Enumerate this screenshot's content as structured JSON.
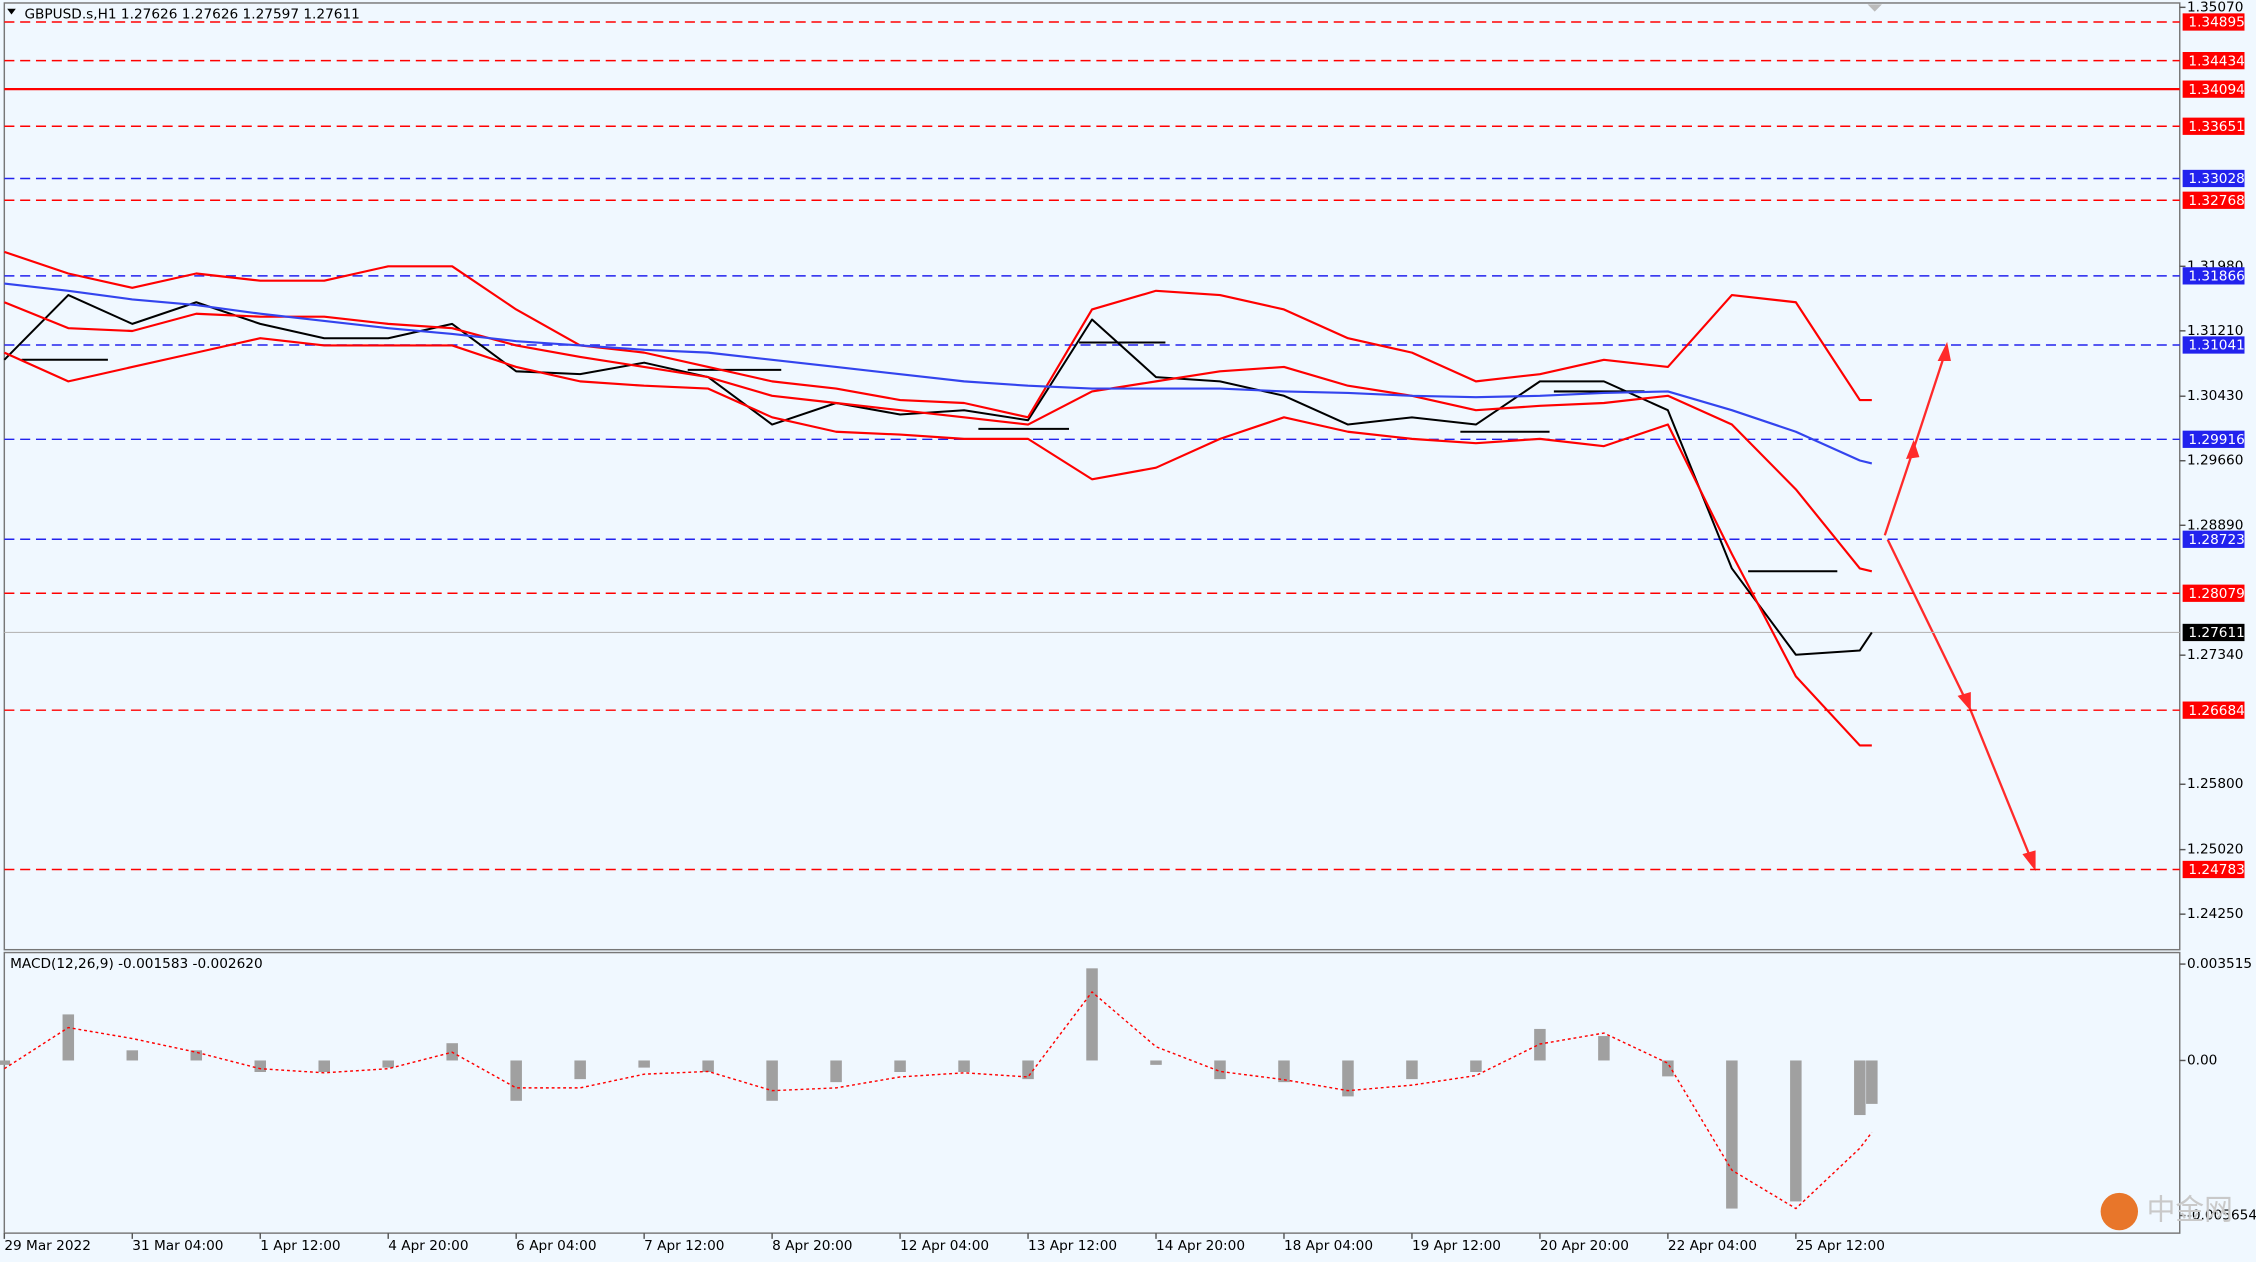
{
  "chart_data": [
    {
      "type": "line",
      "title": "GBPUSD.s,H1  1.27626 1.27626 1.27597 1.27611",
      "xlim": [
        0,
        544
      ],
      "ylim": [
        1.23826,
        1.35122
      ],
      "yticks": [
        {
          "value": 1.3507,
          "label": "1.35070"
        },
        {
          "value": 1.3198,
          "label": "1.31980"
        },
        {
          "value": 1.3121,
          "label": "1.31210"
        },
        {
          "value": 1.3043,
          "label": "1.30430"
        },
        {
          "value": 1.2966,
          "label": "1.29660"
        },
        {
          "value": 1.2889,
          "label": "1.28890"
        },
        {
          "value": 1.2734,
          "label": "1.27340"
        },
        {
          "value": 1.258,
          "label": "1.25800"
        },
        {
          "value": 1.2502,
          "label": "1.25020"
        },
        {
          "value": 1.2425,
          "label": "1.24250"
        }
      ],
      "x": [
        0,
        16,
        32,
        48,
        64,
        80,
        96,
        112,
        128,
        144,
        160,
        176,
        192,
        208,
        224,
        240,
        256,
        272,
        288,
        304,
        320,
        336,
        352,
        368,
        384,
        400,
        416,
        432,
        448,
        464,
        467
      ],
      "series": [
        {
          "color": "#000000",
          "values": [
            1.30864,
            1.31637,
            1.31293,
            1.31551,
            1.31293,
            1.31122,
            1.31122,
            1.31293,
            1.30727,
            1.30693,
            1.3083,
            1.30658,
            1.30092,
            1.30349,
            1.30212,
            1.30263,
            1.30143,
            1.31345,
            1.30658,
            1.30607,
            1.30435,
            1.30092,
            1.30178,
            1.30092,
            1.30607,
            1.30607,
            1.30263,
            1.28375,
            1.27345,
            1.27396,
            1.27611
          ]
        },
        {
          "color": "#ff0000",
          "values": [
            1.32152,
            1.31894,
            1.31723,
            1.31894,
            1.31808,
            1.31808,
            1.3198,
            1.3198,
            1.31465,
            1.31036,
            1.3095,
            1.30779,
            1.30607,
            1.30521,
            1.30384,
            1.30349,
            1.30178,
            1.31465,
            1.31688,
            1.31637,
            1.31465,
            1.31122,
            1.3095,
            1.30607,
            1.30693,
            1.30864,
            1.30779,
            1.31637,
            1.31551,
            1.30384,
            1.30384
          ]
        },
        {
          "color": "#ff0000",
          "values": [
            1.31551,
            1.31242,
            1.31208,
            1.31414,
            1.31379,
            1.31379,
            1.31293,
            1.31242,
            1.31036,
            1.30899,
            1.30779,
            1.30658,
            1.30435,
            1.30349,
            1.30263,
            1.30178,
            1.30092,
            1.30487,
            1.30607,
            1.30727,
            1.30779,
            1.30555,
            1.30435,
            1.30263,
            1.30315,
            1.30349,
            1.30435,
            1.30092,
            1.29319,
            1.28375,
            1.28341
          ]
        },
        {
          "color": "#ff0000",
          "values": [
            1.3095,
            1.30607,
            1.30779,
            1.3095,
            1.31122,
            1.31036,
            1.31036,
            1.31036,
            1.30779,
            1.30607,
            1.30555,
            1.30521,
            1.30178,
            1.30006,
            1.29972,
            1.29921,
            1.29921,
            1.29439,
            1.29577,
            1.29921,
            1.30178,
            1.30006,
            1.29921,
            1.29869,
            1.29921,
            1.29834,
            1.30092,
            1.28547,
            1.27087,
            1.26263,
            1.26263
          ]
        },
        {
          "color": "#3344ee",
          "values": [
            1.31774,
            1.31688,
            1.31585,
            1.31517,
            1.31414,
            1.31328,
            1.31242,
            1.31173,
            1.31087,
            1.31036,
            1.30984,
            1.3095,
            1.30864,
            1.30779,
            1.30693,
            1.30607,
            1.30555,
            1.30521,
            1.30521,
            1.30521,
            1.30487,
            1.30469,
            1.30435,
            1.30418,
            1.30435,
            1.30469,
            1.30487,
            1.30263,
            1.30006,
            1.29663,
            1.29628
          ]
        }
      ],
      "levels": [
        {
          "value": 1.34895,
          "color": "#ff0000",
          "style": "dashed"
        },
        {
          "value": 1.34434,
          "color": "#ff0000",
          "style": "dashed"
        },
        {
          "value": 1.34094,
          "color": "#ff0000",
          "style": "solid"
        },
        {
          "value": 1.33651,
          "color": "#ff0000",
          "style": "dashed"
        },
        {
          "value": 1.33028,
          "color": "#2222ee",
          "style": "dashed"
        },
        {
          "value": 1.32768,
          "color": "#ff0000",
          "style": "dashed"
        },
        {
          "value": 1.31866,
          "color": "#2222ee",
          "style": "dashed"
        },
        {
          "value": 1.31041,
          "color": "#2222ee",
          "style": "dashed"
        },
        {
          "value": 1.29916,
          "color": "#2222ee",
          "style": "dashed"
        },
        {
          "value": 1.28723,
          "color": "#2222ee",
          "style": "dashed"
        },
        {
          "value": 1.28079,
          "color": "#ff0000",
          "style": "dashed"
        },
        {
          "value": 1.26684,
          "color": "#ff0000",
          "style": "dashed"
        },
        {
          "value": 1.24783,
          "color": "#ff0000",
          "style": "dashed"
        }
      ],
      "current_price": {
        "value": 1.27611,
        "color": "#000000"
      },
      "watermark": "中金网"
    },
    {
      "type": "bar",
      "title": "MACD(12,26,9) -0.001583 -0.002620",
      "xlim": [
        0,
        544
      ],
      "xticks": [
        {
          "value": 0,
          "label": "29 Mar 2022"
        },
        {
          "value": 32,
          "label": "31 Mar 04:00"
        },
        {
          "value": 64,
          "label": "1 Apr 12:00"
        },
        {
          "value": 96,
          "label": "4 Apr 20:00"
        },
        {
          "value": 128,
          "label": "6 Apr 04:00"
        },
        {
          "value": 160,
          "label": "7 Apr 12:00"
        },
        {
          "value": 192,
          "label": "8 Apr 20:00"
        },
        {
          "value": 224,
          "label": "12 Apr 04:00"
        },
        {
          "value": 256,
          "label": "13 Apr 12:00"
        },
        {
          "value": 288,
          "label": "14 Apr 20:00"
        },
        {
          "value": 320,
          "label": "18 Apr 04:00"
        },
        {
          "value": 352,
          "label": "19 Apr 12:00"
        },
        {
          "value": 384,
          "label": "20 Apr 20:00"
        },
        {
          "value": 416,
          "label": "22 Apr 04:00"
        },
        {
          "value": 448,
          "label": "25 Apr 12:00"
        }
      ],
      "ylim": [
        -0.006296,
        0.003935
      ],
      "yticks": [
        0.003515,
        {
          "value": 0,
          "label": "0.00"
        },
        -0.005654
      ],
      "x": [
        0,
        16,
        32,
        48,
        64,
        80,
        96,
        112,
        128,
        144,
        160,
        176,
        192,
        208,
        224,
        240,
        256,
        272,
        288,
        304,
        320,
        336,
        352,
        368,
        384,
        400,
        416,
        432,
        448,
        464,
        467
      ],
      "series": [
        {
          "color": "#a0a0a0",
          "values": [
            -0.00016,
            0.00168,
            0.00037,
            0.00037,
            -0.00042,
            -0.00042,
            -0.00026,
            0.00063,
            -0.00147,
            -0.00068,
            -0.00026,
            -0.00042,
            -0.00147,
            -0.00079,
            -0.00042,
            -0.00042,
            -0.00068,
            0.00336,
            -0.00016,
            -0.00068,
            -0.00079,
            -0.00131,
            -0.00068,
            -0.00042,
            0.00115,
            0.00089,
            -0.00058,
            -0.0054,
            -0.00514,
            -0.00199,
            -0.001583
          ]
        },
        {
          "color": "#ff0000",
          "values": [
            -0.0003,
            0.0012,
            0.0008,
            0.0003,
            -0.0003,
            -0.00045,
            -0.0003,
            0.0003,
            -0.001,
            -0.001,
            -0.0005,
            -0.0004,
            -0.0011,
            -0.001,
            -0.0006,
            -0.00045,
            -0.0006,
            0.0025,
            0.0005,
            -0.0004,
            -0.0007,
            -0.0011,
            -0.0009,
            -0.00055,
            0.0006,
            0.001,
            -0.0001,
            -0.004,
            -0.0054,
            -0.0032,
            -0.00262
          ]
        }
      ]
    }
  ]
}
